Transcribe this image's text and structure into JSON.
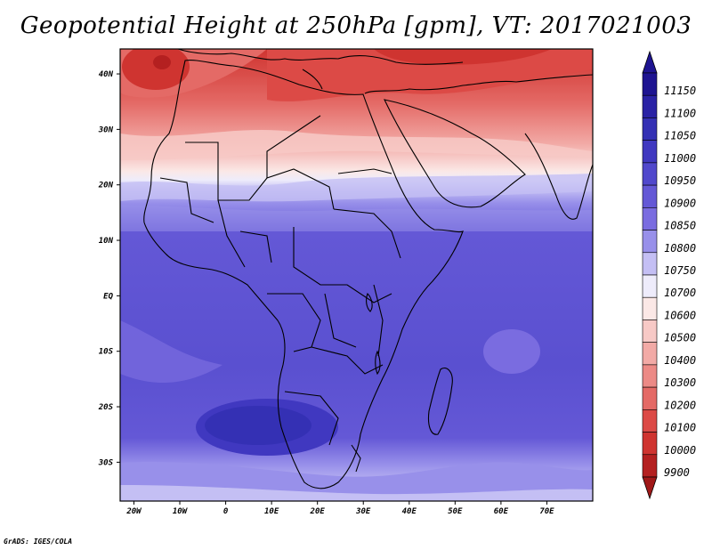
{
  "title": "Geopotential Height at 250hPa [gpm], VT: 2017021003",
  "footer": "GrADS: IGES/COLA",
  "map": {
    "lat_labels": [
      {
        "lat": 40,
        "text": "40N"
      },
      {
        "lat": 30,
        "text": "30N"
      },
      {
        "lat": 20,
        "text": "20N"
      },
      {
        "lat": 10,
        "text": "10N"
      },
      {
        "lat": 0,
        "text": "EQ"
      },
      {
        "lat": -10,
        "text": "10S"
      },
      {
        "lat": -20,
        "text": "20S"
      },
      {
        "lat": -30,
        "text": "30S"
      }
    ],
    "lon_labels": [
      {
        "lon": -20,
        "text": "20W"
      },
      {
        "lon": -10,
        "text": "10W"
      },
      {
        "lon": 0,
        "text": "0"
      },
      {
        "lon": 10,
        "text": "10E"
      },
      {
        "lon": 20,
        "text": "20E"
      },
      {
        "lon": 30,
        "text": "30E"
      },
      {
        "lon": 40,
        "text": "40E"
      },
      {
        "lon": 50,
        "text": "50E"
      },
      {
        "lon": 60,
        "text": "60E"
      },
      {
        "lon": 70,
        "text": "70E"
      }
    ]
  },
  "colorbar": {
    "levels": [
      {
        "value": "11150",
        "color": "#1e1491"
      },
      {
        "value": "11100",
        "color": "#2a22a5"
      },
      {
        "value": "11050",
        "color": "#3430b4"
      },
      {
        "value": "11000",
        "color": "#4038c0"
      },
      {
        "value": "10950",
        "color": "#5148cc"
      },
      {
        "value": "10900",
        "color": "#6458d6"
      },
      {
        "value": "10850",
        "color": "#7a6ce0"
      },
      {
        "value": "10800",
        "color": "#9890ea"
      },
      {
        "value": "10750",
        "color": "#c4bff4"
      },
      {
        "value": "10700",
        "color": "#eeecfb"
      },
      {
        "value": "10600",
        "color": "#fbe8e6"
      },
      {
        "value": "10500",
        "color": "#f7c9c6"
      },
      {
        "value": "10400",
        "color": "#f2aaa6"
      },
      {
        "value": "10300",
        "color": "#ec8a86"
      },
      {
        "value": "10200",
        "color": "#e46a66"
      },
      {
        "value": "10100",
        "color": "#dc4a46"
      },
      {
        "value": "10000",
        "color": "#cf3430"
      },
      {
        "value": "9900",
        "color": "#b42020"
      }
    ],
    "top_arrow_color": "#1e1491",
    "bottom_arrow_color": "#a01818"
  }
}
